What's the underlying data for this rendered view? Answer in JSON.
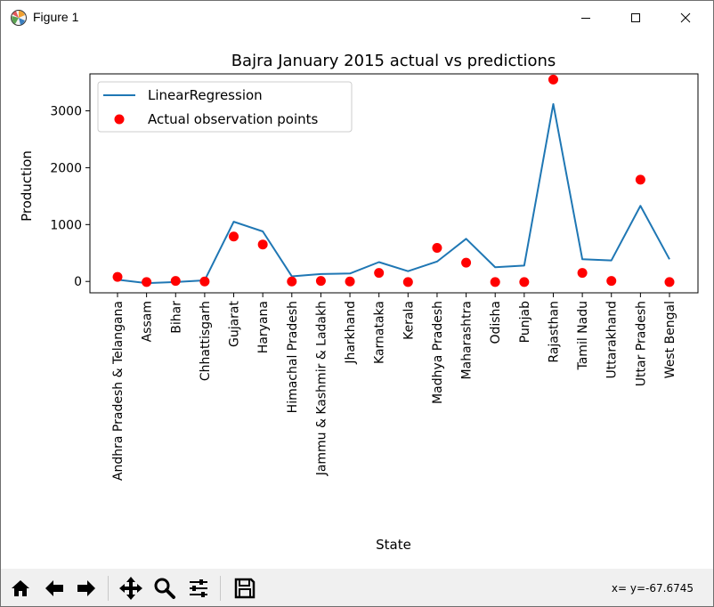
{
  "window": {
    "title": "Figure 1",
    "controls": {
      "minimize": "minimize",
      "maximize": "maximize",
      "close": "close"
    }
  },
  "toolbar": {
    "buttons": [
      "home-icon",
      "back-arrow-icon",
      "forward-arrow-icon",
      "pan-icon",
      "zoom-icon",
      "configure-subplots-icon",
      "save-icon"
    ],
    "coords": "x= y=-67.6745"
  },
  "colors": {
    "line": "#1f77b4",
    "points": "#ff0000"
  },
  "chart_data": {
    "type": "line",
    "title": "Bajra January 2015 actual vs predictions",
    "xlabel": "State",
    "ylabel": "Production",
    "ylim": [
      -200,
      3650
    ],
    "yticks": [
      0,
      1000,
      2000,
      3000
    ],
    "grid": false,
    "legend_position": "upper-left",
    "categories": [
      "Andhra Pradesh & Telangana",
      "Assam",
      "Bihar",
      "Chhattisgarh",
      "Gujarat",
      "Haryana",
      "Himachal Pradesh",
      "Jammu & Kashmir & Ladakh",
      "Jharkhand",
      "Karnataka",
      "Kerala",
      "Madhya Pradesh",
      "Maharashtra",
      "Odisha",
      "Punjab",
      "Rajasthan",
      "Tamil Nadu",
      "Uttarakhand",
      "Uttar Pradesh",
      "West Bengal"
    ],
    "series": [
      {
        "name": "LinearRegression",
        "kind": "line",
        "color": "#1f77b4",
        "values": [
          30,
          -30,
          -10,
          20,
          1050,
          880,
          90,
          130,
          140,
          340,
          180,
          350,
          750,
          250,
          280,
          3120,
          390,
          370,
          1330,
          390
        ]
      },
      {
        "name": "Actual observation points",
        "kind": "scatter",
        "color": "#ff0000",
        "values": [
          80,
          -10,
          10,
          0,
          790,
          650,
          0,
          10,
          0,
          150,
          -10,
          590,
          330,
          -10,
          -10,
          3550,
          150,
          10,
          1790,
          -10
        ]
      }
    ]
  }
}
